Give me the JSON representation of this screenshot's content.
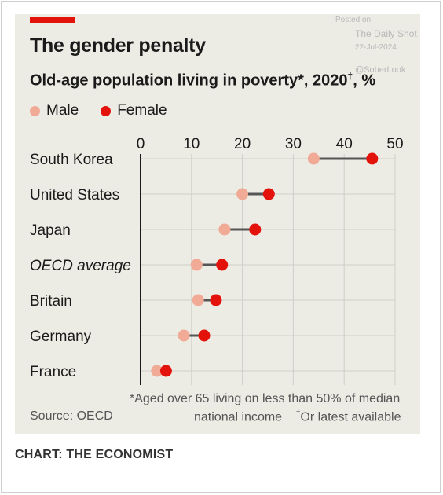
{
  "header": {
    "title": "The gender penalty",
    "subtitle_main": "Old-age population living in poverty*, 2020",
    "subtitle_dagger": "†",
    "subtitle_unit": ", %"
  },
  "watermark": {
    "posted_on": "Posted on",
    "site": "The Daily Shot",
    "date": "22-Jul-2024",
    "handle": "@SoberLook"
  },
  "footer": {
    "footnote_line1": "*Aged over 65 living on less than 50% of median",
    "footnote_line2a": "national income",
    "footnote_dagger": "†",
    "footnote_line2b": "Or latest available",
    "source": "Source: OECD",
    "credit": "CHART: THE ECONOMIST"
  },
  "colors": {
    "male": "#f0aa96",
    "female": "#e3120b",
    "connector": "#555555",
    "grid": "#cfcfc9",
    "brand_red": "#e3120b"
  },
  "chart_data": {
    "type": "dumbbell",
    "x_ticks": [
      0,
      10,
      20,
      30,
      40,
      50
    ],
    "xlim": [
      0,
      50
    ],
    "grid": true,
    "legend_position": "top-left",
    "categories": [
      "South Korea",
      "United States",
      "Japan",
      "OECD average",
      "Britain",
      "Germany",
      "France"
    ],
    "italic_categories": [
      "OECD average"
    ],
    "series": [
      {
        "name": "Male",
        "values": [
          34.0,
          20.0,
          16.5,
          11.0,
          11.3,
          8.5,
          3.2
        ]
      },
      {
        "name": "Female",
        "values": [
          45.5,
          25.2,
          22.5,
          16.0,
          14.8,
          12.5,
          5.0
        ]
      }
    ]
  }
}
